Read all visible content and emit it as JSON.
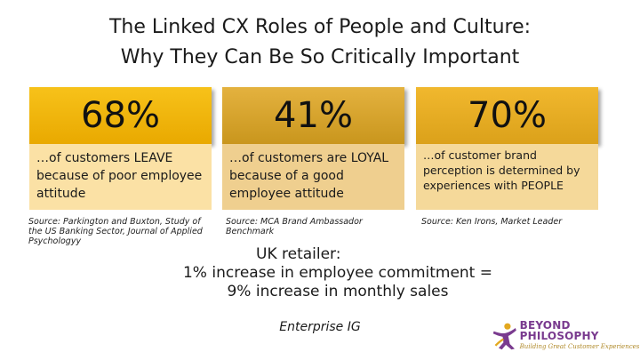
{
  "title": {
    "line1": "The Linked CX Roles of People and Culture:",
    "line2": "Why They Can Be So Critically Important"
  },
  "stats": [
    {
      "value": "68%",
      "description": "…of customers LEAVE because of poor employee attitude",
      "source": "Source: Parkington and Buxton, Study of the US Banking Sector, Journal of Applied Psychologyy"
    },
    {
      "value": "41%",
      "description": "…of customers are LOYAL because of a good employee attitude",
      "source": "Source: MCA Brand Ambassador Benchmark"
    },
    {
      "value": "70%",
      "description": "…of customer brand perception is determined by experiences with PEOPLE",
      "source": "Source: Ken Irons, Market Leader"
    }
  ],
  "highlight": {
    "line1": "UK retailer:",
    "line2": "1% increase in employee commitment =",
    "line3": "9% increase in monthly sales"
  },
  "footer": {
    "text": "Enterprise IG"
  },
  "logo": {
    "name": "BEYOND PHILOSOPHY",
    "tagline": "Building Great Customer Experiences",
    "colors": {
      "purple": "#7a3b8f",
      "gold": "#e3a81f"
    }
  },
  "colors": {
    "accent_gold": "#f1b82e",
    "light_gold": "#fbe1a5"
  }
}
